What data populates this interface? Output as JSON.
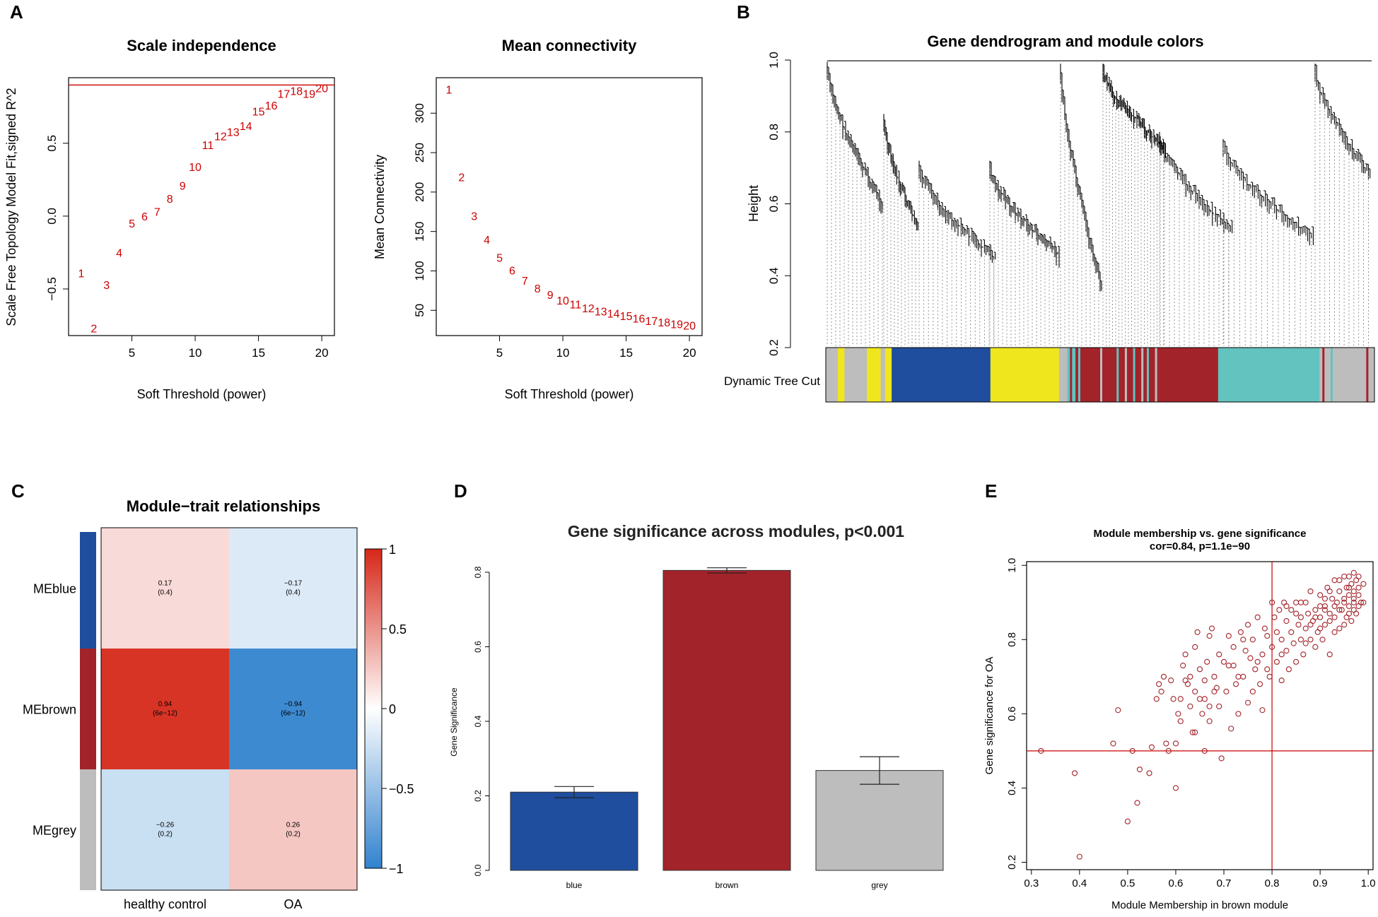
{
  "panel_labels": {
    "a": "A",
    "b": "B",
    "c": "C",
    "d": "D",
    "e": "E"
  },
  "colors": {
    "blue": "#1f4e9e",
    "brown": "#a3232a",
    "grey": "#bdbdbd",
    "yellow": "#f0e61d",
    "turquoise": "#63c3bf",
    "red": "#cc0000"
  },
  "chart_data": [
    {
      "id": "scale_independence",
      "type": "scatter",
      "title": "Scale independence",
      "xlabel": "Soft Threshold (power)",
      "ylabel": "Scale Free Topology Model Fit,signed R^2",
      "xlim": [
        0,
        21
      ],
      "ylim": [
        -0.82,
        0.95
      ],
      "xticks": [
        5,
        10,
        15,
        20
      ],
      "yticks": [
        -0.5,
        0.0,
        0.5
      ],
      "ytick_labels": [
        "−0.5",
        "0.0",
        "0.5"
      ],
      "hline": 0.9,
      "points": [
        {
          "x": 1,
          "y": -0.39,
          "label": "1"
        },
        {
          "x": 2,
          "y": -0.77,
          "label": "2"
        },
        {
          "x": 3,
          "y": -0.47,
          "label": "3"
        },
        {
          "x": 4,
          "y": -0.25,
          "label": "4"
        },
        {
          "x": 5,
          "y": -0.05,
          "label": "5"
        },
        {
          "x": 6,
          "y": 0.0,
          "label": "6"
        },
        {
          "x": 7,
          "y": 0.03,
          "label": "7"
        },
        {
          "x": 8,
          "y": 0.12,
          "label": "8"
        },
        {
          "x": 9,
          "y": 0.21,
          "label": "9"
        },
        {
          "x": 10,
          "y": 0.34,
          "label": "10"
        },
        {
          "x": 11,
          "y": 0.49,
          "label": "11"
        },
        {
          "x": 12,
          "y": 0.55,
          "label": "12"
        },
        {
          "x": 13,
          "y": 0.58,
          "label": "13"
        },
        {
          "x": 14,
          "y": 0.62,
          "label": "14"
        },
        {
          "x": 15,
          "y": 0.72,
          "label": "15"
        },
        {
          "x": 16,
          "y": 0.76,
          "label": "16"
        },
        {
          "x": 17,
          "y": 0.84,
          "label": "17"
        },
        {
          "x": 18,
          "y": 0.86,
          "label": "18"
        },
        {
          "x": 19,
          "y": 0.84,
          "label": "19"
        },
        {
          "x": 20,
          "y": 0.88,
          "label": "20"
        }
      ]
    },
    {
      "id": "mean_connectivity",
      "type": "scatter",
      "title": "Mean connectivity",
      "xlabel": "Soft Threshold (power)",
      "ylabel": "Mean Connectivity",
      "xlim": [
        0,
        21
      ],
      "ylim": [
        18,
        345
      ],
      "xticks": [
        5,
        10,
        15,
        20
      ],
      "yticks": [
        50,
        100,
        150,
        200,
        250,
        300
      ],
      "points": [
        {
          "x": 1,
          "y": 330,
          "label": "1"
        },
        {
          "x": 2,
          "y": 219,
          "label": "2"
        },
        {
          "x": 3,
          "y": 170,
          "label": "3"
        },
        {
          "x": 4,
          "y": 140,
          "label": "4"
        },
        {
          "x": 5,
          "y": 117,
          "label": "5"
        },
        {
          "x": 6,
          "y": 101,
          "label": "6"
        },
        {
          "x": 7,
          "y": 88,
          "label": "7"
        },
        {
          "x": 8,
          "y": 78,
          "label": "8"
        },
        {
          "x": 9,
          "y": 70,
          "label": "9"
        },
        {
          "x": 10,
          "y": 63,
          "label": "10"
        },
        {
          "x": 11,
          "y": 58,
          "label": "11"
        },
        {
          "x": 12,
          "y": 53,
          "label": "12"
        },
        {
          "x": 13,
          "y": 49,
          "label": "13"
        },
        {
          "x": 14,
          "y": 46,
          "label": "14"
        },
        {
          "x": 15,
          "y": 43,
          "label": "15"
        },
        {
          "x": 16,
          "y": 40,
          "label": "16"
        },
        {
          "x": 17,
          "y": 37,
          "label": "17"
        },
        {
          "x": 18,
          "y": 35,
          "label": "18"
        },
        {
          "x": 19,
          "y": 33,
          "label": "19"
        },
        {
          "x": 20,
          "y": 31,
          "label": "20"
        }
      ]
    },
    {
      "id": "dendrogram",
      "type": "dendrogram",
      "title": "Gene dendrogram and module colors",
      "ylabel": "Height",
      "ylim": [
        0.2,
        1.0
      ],
      "yticks": [
        0.2,
        0.4,
        0.6,
        0.8,
        1.0
      ],
      "ytick_labels": [
        "0.2",
        "0.4",
        "0.6",
        "0.8",
        "1.0"
      ],
      "color_bar_label": "Dynamic Tree Cut",
      "module_segments": [
        {
          "module": "grey",
          "from": 0.0,
          "to": 0.022
        },
        {
          "module": "yellow",
          "from": 0.022,
          "to": 0.034
        },
        {
          "module": "grey",
          "from": 0.034,
          "to": 0.075
        },
        {
          "module": "yellow",
          "from": 0.075,
          "to": 0.1
        },
        {
          "module": "grey",
          "from": 0.1,
          "to": 0.108
        },
        {
          "module": "yellow",
          "from": 0.108,
          "to": 0.12
        },
        {
          "module": "blue",
          "from": 0.12,
          "to": 0.3
        },
        {
          "module": "yellow",
          "from": 0.3,
          "to": 0.425
        },
        {
          "module": "grey",
          "from": 0.425,
          "to": 0.44
        },
        {
          "module": "turquoise",
          "from": 0.44,
          "to": 0.455
        },
        {
          "module": "brown",
          "from": 0.455,
          "to": 0.6
        },
        {
          "module": "brown",
          "from": 0.6,
          "to": 0.715
        },
        {
          "module": "turquoise",
          "from": 0.715,
          "to": 0.9
        },
        {
          "module": "grey",
          "from": 0.9,
          "to": 1.0
        }
      ]
    },
    {
      "id": "module_trait",
      "type": "heatmap",
      "title": "Module−trait relationships",
      "rows": [
        "MEblue",
        "MEbrown",
        "MEgrey"
      ],
      "row_colors": [
        "blue",
        "brown",
        "grey"
      ],
      "columns": [
        "healthy control",
        "OA"
      ],
      "values": [
        [
          0.17,
          -0.17
        ],
        [
          0.94,
          -0.94
        ],
        [
          -0.26,
          0.26
        ]
      ],
      "cell_labels": [
        [
          "0.17",
          "−0.17"
        ],
        [
          "0.94",
          "−0.94"
        ],
        [
          "−0.26",
          "0.26"
        ]
      ],
      "pvalues": [
        [
          "(0.4)",
          "(0.4)"
        ],
        [
          "(6e−12)",
          "(6e−12)"
        ],
        [
          "(0.2)",
          "(0.2)"
        ]
      ],
      "scale_ticks": [
        "1",
        "0.5",
        "0",
        "−0.5",
        "−1"
      ]
    },
    {
      "id": "gene_significance",
      "type": "bar",
      "title": "Gene significance across modules, p<0.001",
      "ylabel": "Gene Significance",
      "categories": [
        "blue",
        "brown",
        "grey"
      ],
      "values": [
        0.21,
        0.805,
        0.268
      ],
      "errors": [
        0.015,
        0.007,
        0.037
      ],
      "ylim": [
        0,
        0.8
      ],
      "yticks": [
        "0.0",
        "0.2",
        "0.4",
        "0.6",
        "0.8"
      ]
    },
    {
      "id": "mm_vs_gs",
      "type": "scatter",
      "title": "Module membership vs. gene significance",
      "subtitle": "cor=0.84, p=1.1e−90",
      "xlabel": "Module Membership in brown module",
      "ylabel": "Gene significance for OA",
      "xlim": [
        0.29,
        1.01
      ],
      "ylim": [
        0.18,
        1.01
      ],
      "xticks": [
        "0.3",
        "0.4",
        "0.5",
        "0.6",
        "0.7",
        "0.8",
        "0.9",
        "1.0"
      ],
      "yticks": [
        "0.2",
        "0.4",
        "0.6",
        "0.8",
        "1.0"
      ],
      "hline": 0.5,
      "vline": 0.8,
      "points": [
        [
          0.32,
          0.5
        ],
        [
          0.39,
          0.44
        ],
        [
          0.4,
          0.215
        ],
        [
          0.47,
          0.52
        ],
        [
          0.48,
          0.61
        ],
        [
          0.5,
          0.31
        ],
        [
          0.51,
          0.5
        ],
        [
          0.52,
          0.36
        ],
        [
          0.525,
          0.45
        ],
        [
          0.545,
          0.44
        ],
        [
          0.55,
          0.51
        ],
        [
          0.56,
          0.64
        ],
        [
          0.565,
          0.68
        ],
        [
          0.57,
          0.66
        ],
        [
          0.575,
          0.7
        ],
        [
          0.58,
          0.52
        ],
        [
          0.585,
          0.5
        ],
        [
          0.59,
          0.69
        ],
        [
          0.595,
          0.64
        ],
        [
          0.6,
          0.4
        ],
        [
          0.6,
          0.52
        ],
        [
          0.605,
          0.6
        ],
        [
          0.61,
          0.58
        ],
        [
          0.615,
          0.73
        ],
        [
          0.62,
          0.76
        ],
        [
          0.625,
          0.68
        ],
        [
          0.63,
          0.62
        ],
        [
          0.63,
          0.7
        ],
        [
          0.635,
          0.55
        ],
        [
          0.64,
          0.66
        ],
        [
          0.64,
          0.78
        ],
        [
          0.645,
          0.82
        ],
        [
          0.65,
          0.72
        ],
        [
          0.655,
          0.6
        ],
        [
          0.66,
          0.5
        ],
        [
          0.66,
          0.64
        ],
        [
          0.665,
          0.74
        ],
        [
          0.67,
          0.58
        ],
        [
          0.67,
          0.81
        ],
        [
          0.675,
          0.83
        ],
        [
          0.68,
          0.7
        ],
        [
          0.685,
          0.67
        ],
        [
          0.69,
          0.62
        ],
        [
          0.69,
          0.76
        ],
        [
          0.695,
          0.48
        ],
        [
          0.7,
          0.74
        ],
        [
          0.705,
          0.66
        ],
        [
          0.71,
          0.81
        ],
        [
          0.715,
          0.56
        ],
        [
          0.72,
          0.73
        ],
        [
          0.72,
          0.78
        ],
        [
          0.725,
          0.68
        ],
        [
          0.73,
          0.6
        ],
        [
          0.735,
          0.82
        ],
        [
          0.74,
          0.7
        ],
        [
          0.745,
          0.77
        ],
        [
          0.75,
          0.63
        ],
        [
          0.755,
          0.75
        ],
        [
          0.76,
          0.8
        ],
        [
          0.765,
          0.72
        ],
        [
          0.77,
          0.86
        ],
        [
          0.775,
          0.68
        ],
        [
          0.78,
          0.61
        ],
        [
          0.78,
          0.76
        ],
        [
          0.785,
          0.83
        ],
        [
          0.79,
          0.72
        ],
        [
          0.795,
          0.7
        ],
        [
          0.8,
          0.9
        ],
        [
          0.8,
          0.78
        ],
        [
          0.805,
          0.86
        ],
        [
          0.81,
          0.82
        ],
        [
          0.81,
          0.74
        ],
        [
          0.815,
          0.88
        ],
        [
          0.82,
          0.8
        ],
        [
          0.82,
          0.69
        ],
        [
          0.825,
          0.9
        ],
        [
          0.83,
          0.77
        ],
        [
          0.83,
          0.85
        ],
        [
          0.835,
          0.72
        ],
        [
          0.84,
          0.82
        ],
        [
          0.84,
          0.88
        ],
        [
          0.845,
          0.79
        ],
        [
          0.85,
          0.9
        ],
        [
          0.85,
          0.74
        ],
        [
          0.855,
          0.84
        ],
        [
          0.86,
          0.8
        ],
        [
          0.86,
          0.86
        ],
        [
          0.865,
          0.76
        ],
        [
          0.87,
          0.83
        ],
        [
          0.87,
          0.9
        ],
        [
          0.875,
          0.87
        ],
        [
          0.88,
          0.8
        ],
        [
          0.88,
          0.93
        ],
        [
          0.885,
          0.85
        ],
        [
          0.89,
          0.78
        ],
        [
          0.89,
          0.88
        ],
        [
          0.895,
          0.82
        ],
        [
          0.9,
          0.92
        ],
        [
          0.9,
          0.86
        ],
        [
          0.905,
          0.8
        ],
        [
          0.91,
          0.89
        ],
        [
          0.91,
          0.84
        ],
        [
          0.915,
          0.94
        ],
        [
          0.92,
          0.87
        ],
        [
          0.92,
          0.76
        ],
        [
          0.925,
          0.91
        ],
        [
          0.93,
          0.86
        ],
        [
          0.93,
          0.96
        ],
        [
          0.935,
          0.9
        ],
        [
          0.94,
          0.83
        ],
        [
          0.94,
          0.93
        ],
        [
          0.945,
          0.88
        ],
        [
          0.95,
          0.91
        ],
        [
          0.95,
          0.97
        ],
        [
          0.955,
          0.86
        ],
        [
          0.955,
          0.94
        ],
        [
          0.96,
          0.89
        ],
        [
          0.96,
          0.92
        ],
        [
          0.965,
          0.85
        ],
        [
          0.965,
          0.95
        ],
        [
          0.97,
          0.88
        ],
        [
          0.97,
          0.9
        ],
        [
          0.97,
          0.93
        ],
        [
          0.975,
          0.87
        ],
        [
          0.975,
          0.96
        ],
        [
          0.98,
          0.89
        ],
        [
          0.98,
          0.92
        ],
        [
          0.98,
          0.94
        ],
        [
          0.985,
          0.9
        ],
        [
          0.99,
          0.95
        ],
        [
          0.62,
          0.69
        ],
        [
          0.67,
          0.62
        ],
        [
          0.73,
          0.7
        ],
        [
          0.76,
          0.66
        ],
        [
          0.82,
          0.76
        ],
        [
          0.86,
          0.9
        ],
        [
          0.88,
          0.84
        ],
        [
          0.9,
          0.89
        ],
        [
          0.92,
          0.93
        ],
        [
          0.94,
          0.88
        ],
        [
          0.96,
          0.97
        ],
        [
          0.96,
          0.87
        ],
        [
          0.97,
          0.91
        ],
        [
          0.95,
          0.84
        ],
        [
          0.93,
          0.82
        ],
        [
          0.91,
          0.91
        ],
        [
          0.89,
          0.86
        ],
        [
          0.87,
          0.79
        ],
        [
          0.85,
          0.87
        ],
        [
          0.83,
          0.89
        ],
        [
          0.79,
          0.81
        ],
        [
          0.77,
          0.74
        ],
        [
          0.75,
          0.84
        ],
        [
          0.74,
          0.8
        ],
        [
          0.71,
          0.73
        ],
        [
          0.68,
          0.66
        ],
        [
          0.66,
          0.69
        ],
        [
          0.65,
          0.64
        ],
        [
          0.64,
          0.55
        ],
        [
          0.61,
          0.64
        ],
        [
          0.98,
          0.97
        ],
        [
          0.99,
          0.9
        ],
        [
          0.97,
          0.98
        ],
        [
          0.96,
          0.94
        ],
        [
          0.95,
          0.9
        ],
        [
          0.94,
          0.96
        ],
        [
          0.93,
          0.89
        ],
        [
          0.92,
          0.85
        ],
        [
          0.91,
          0.88
        ],
        [
          0.9,
          0.83
        ]
      ]
    }
  ]
}
